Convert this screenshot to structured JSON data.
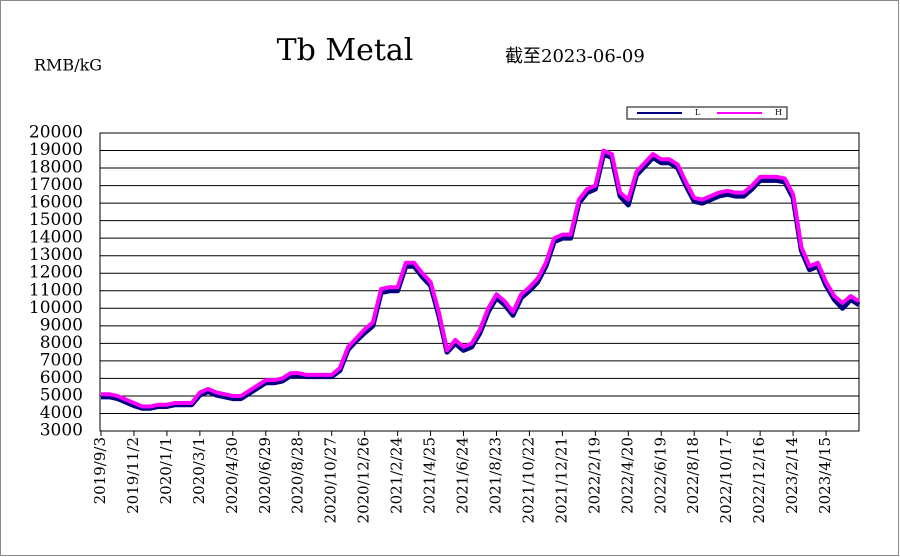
{
  "chart_data": {
    "type": "line",
    "title": "Tb  Metal",
    "y_label": "RMB/kG",
    "subtitle": "截至2023-06-09",
    "categories": [
      "2019/9/3",
      null,
      null,
      null,
      "2019/11/2",
      null,
      null,
      null,
      "2020/1/1",
      null,
      null,
      null,
      "2020/3/1",
      null,
      null,
      null,
      "2020/4/30",
      null,
      null,
      null,
      "2020/6/29",
      null,
      null,
      null,
      "2020/8/28",
      null,
      null,
      null,
      "2020/10/27",
      null,
      null,
      null,
      "2020/12/26",
      null,
      null,
      null,
      "2021/2/24",
      null,
      null,
      null,
      "2021/4/25",
      null,
      null,
      null,
      "2021/6/24",
      null,
      null,
      null,
      "2021/8/23",
      null,
      null,
      null,
      "2021/10/22",
      null,
      null,
      null,
      "2021/12/21",
      null,
      null,
      null,
      "2022/2/19",
      null,
      null,
      null,
      "2022/4/20",
      null,
      null,
      null,
      "2022/6/19",
      null,
      null,
      null,
      "2022/8/18",
      null,
      null,
      null,
      "2022/10/17",
      null,
      null,
      null,
      "2022/12/16",
      null,
      null,
      null,
      "2023/2/14",
      null,
      null,
      null,
      "2023/4/15",
      null,
      null,
      null,
      null
    ],
    "series": [
      {
        "name": "L",
        "color": "#000080",
        "values": [
          4950,
          4950,
          4850,
          4650,
          4450,
          4300,
          4300,
          4400,
          4400,
          4500,
          4500,
          4500,
          5050,
          5250,
          5050,
          4950,
          4850,
          4850,
          5150,
          5450,
          5750,
          5750,
          5850,
          6150,
          6150,
          6100,
          6100,
          6100,
          6100,
          6450,
          7650,
          8150,
          8600,
          9000,
          10900,
          11000,
          11000,
          12400,
          12400,
          11800,
          11300,
          9600,
          7500,
          8000,
          7600,
          7800,
          8600,
          9800,
          10600,
          10200,
          9600,
          10600,
          11000,
          11500,
          12400,
          13800,
          14000,
          14000,
          16000,
          16600,
          16800,
          18800,
          18600,
          16400,
          15900,
          17600,
          18100,
          18600,
          18300,
          18300,
          18000,
          17000,
          16100,
          16000,
          16200,
          16400,
          16500,
          16400,
          16400,
          16800,
          17300,
          17300,
          17300,
          17200,
          16300,
          13300,
          12200,
          12400,
          11300,
          10500,
          10000,
          10500,
          10200
        ]
      },
      {
        "name": "H",
        "color": "#ff00ff",
        "values": [
          5100,
          5100,
          5000,
          4800,
          4600,
          4400,
          4400,
          4500,
          4500,
          4600,
          4600,
          4600,
          5200,
          5400,
          5200,
          5100,
          5000,
          5000,
          5300,
          5600,
          5900,
          5900,
          6000,
          6300,
          6300,
          6200,
          6200,
          6200,
          6200,
          6600,
          7800,
          8300,
          8800,
          9200,
          11100,
          11200,
          11200,
          12600,
          12600,
          12000,
          11500,
          9800,
          7600,
          8200,
          7800,
          8000,
          8800,
          10000,
          10800,
          10400,
          9800,
          10800,
          11200,
          11700,
          12600,
          14000,
          14200,
          14200,
          16200,
          16800,
          17000,
          19000,
          18800,
          16600,
          16200,
          17800,
          18300,
          18800,
          18500,
          18500,
          18200,
          17200,
          16300,
          16200,
          16400,
          16600,
          16700,
          16600,
          16600,
          17000,
          17500,
          17500,
          17500,
          17400,
          16500,
          13500,
          12400,
          12600,
          11500,
          10700,
          10300,
          10700,
          10400
        ]
      }
    ],
    "ylim": [
      3000,
      20000
    ],
    "yticks": [
      3000,
      4000,
      5000,
      6000,
      7000,
      8000,
      9000,
      10000,
      11000,
      12000,
      13000,
      14000,
      15000,
      16000,
      17000,
      18000,
      19000,
      20000
    ],
    "grid": true
  }
}
